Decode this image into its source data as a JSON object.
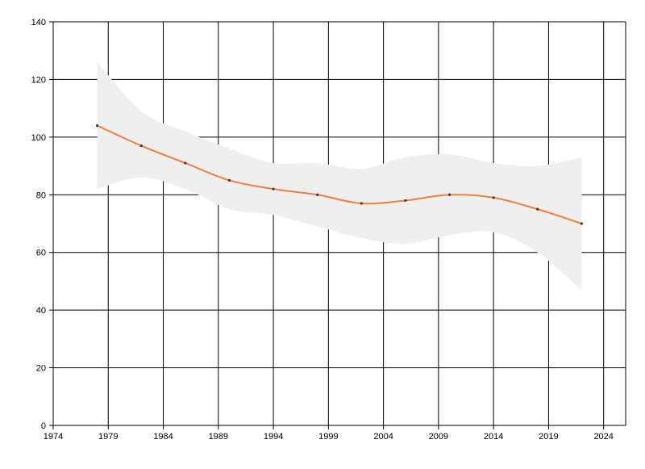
{
  "chart_data": {
    "type": "line",
    "title": "",
    "xlabel": "",
    "ylabel": "",
    "xlim": [
      1974,
      2026
    ],
    "ylim": [
      0,
      140
    ],
    "grid": true,
    "x_ticks": [
      1974,
      1979,
      1984,
      1989,
      1994,
      1999,
      2004,
      2009,
      2014,
      2019,
      2024
    ],
    "y_ticks": [
      0,
      20,
      40,
      60,
      80,
      100,
      120,
      140
    ],
    "x_tick_labels": [
      "1974",
      "1979",
      "1984",
      "1989",
      "1994",
      "1999",
      "2004",
      "2009",
      "2014",
      "2019",
      "2024"
    ],
    "y_tick_labels": [
      "0",
      "20",
      "40",
      "60",
      "80",
      "100",
      "120",
      "140"
    ],
    "series": [
      {
        "x": [
          1978,
          1982,
          1986,
          1990,
          1994,
          1998,
          2002,
          2006,
          2010,
          2014,
          2018,
          2022
        ],
        "y": [
          104,
          97,
          91,
          85,
          82,
          80,
          77,
          78,
          80,
          79,
          75,
          70
        ],
        "band_upper": [
          126,
          109,
          102,
          96,
          91,
          91,
          89,
          93,
          94,
          91,
          90,
          93
        ],
        "band_lower": [
          82,
          86,
          82,
          75,
          73,
          69,
          65,
          63,
          66,
          67,
          60,
          47
        ]
      }
    ],
    "colors": {
      "line": "#f57c3a",
      "band": "#efefef",
      "grid": "#000000",
      "marker": "#3a3a3a"
    }
  }
}
